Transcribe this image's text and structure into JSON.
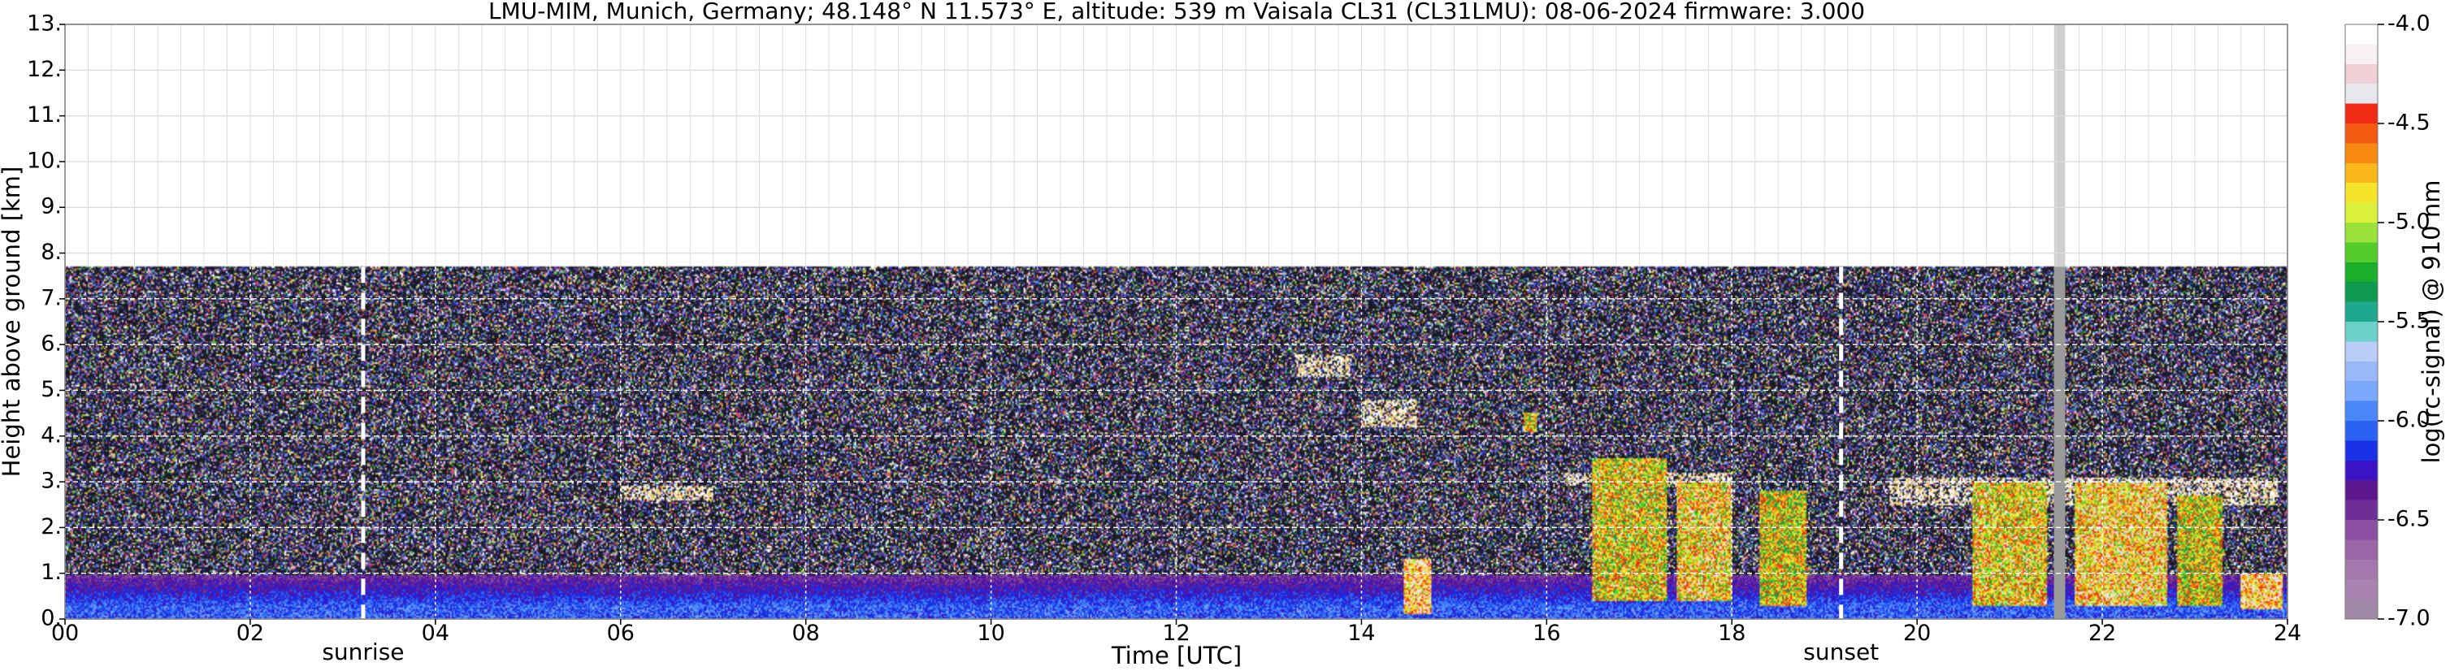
{
  "chart_data": {
    "type": "heatmap",
    "title": "LMU-MIM, Munich, Germany; 48.148° N 11.573° E, altitude: 539 m    Vaisala CL31 (CL31LMU): 08-06-2024    firmware: 3.000",
    "xlabel": "Time [UTC]",
    "ylabel": "Height above ground [km]",
    "xlim": [
      0,
      24
    ],
    "ylim": [
      0,
      13
    ],
    "x_ticks": [
      0,
      2,
      4,
      6,
      8,
      10,
      12,
      14,
      16,
      18,
      20,
      22,
      24
    ],
    "x_tick_labels": [
      "00",
      "02",
      "04",
      "06",
      "08",
      "10",
      "12",
      "14",
      "16",
      "18",
      "20",
      "22",
      "24"
    ],
    "y_ticks": [
      0,
      1,
      2,
      3,
      4,
      5,
      6,
      7,
      8,
      9,
      10,
      11,
      12,
      13
    ],
    "y_tick_labels": [
      "0.",
      "1.",
      "2.",
      "3.",
      "4.",
      "5.",
      "6.",
      "7.",
      "8.",
      "9.",
      "10.",
      "11.",
      "12.",
      "13."
    ],
    "grid": true,
    "data_top_km": 7.7,
    "colorbar": {
      "label": "log(rc-signal) @ 910 nm",
      "range": [
        -7.0,
        -4.0
      ],
      "ticks": [
        -7.0,
        -6.5,
        -6.0,
        -5.5,
        -5.0,
        -4.5,
        -4.0
      ],
      "tick_labels": [
        "-7.0",
        "-6.5",
        "-6.0",
        "-5.5",
        "-5.0",
        "-4.5",
        "-4.0"
      ],
      "colors": [
        "#a08aa8",
        "#a882b0",
        "#a478ac",
        "#9a66a6",
        "#8a4fa0",
        "#6f2d96",
        "#5c168e",
        "#3a14c4",
        "#1830e6",
        "#2a62f4",
        "#4a88fa",
        "#7aa8fa",
        "#9ab8f8",
        "#b8cef6",
        "#6ad0c8",
        "#1ea88e",
        "#0e9a50",
        "#1aae2a",
        "#52cc2a",
        "#9ae23a",
        "#daf03a",
        "#f6e42a",
        "#fab81a",
        "#f88a12",
        "#f45a12",
        "#f02a14",
        "#e8e8ec",
        "#f0d0d4",
        "#f8f0f2",
        "#ffffff"
      ]
    },
    "events": [
      {
        "name": "sunrise",
        "time": 3.22
      },
      {
        "name": "sunset",
        "time": 19.18
      }
    ],
    "missing_data": [
      {
        "start": 21.48,
        "end": 21.6
      }
    ]
  }
}
